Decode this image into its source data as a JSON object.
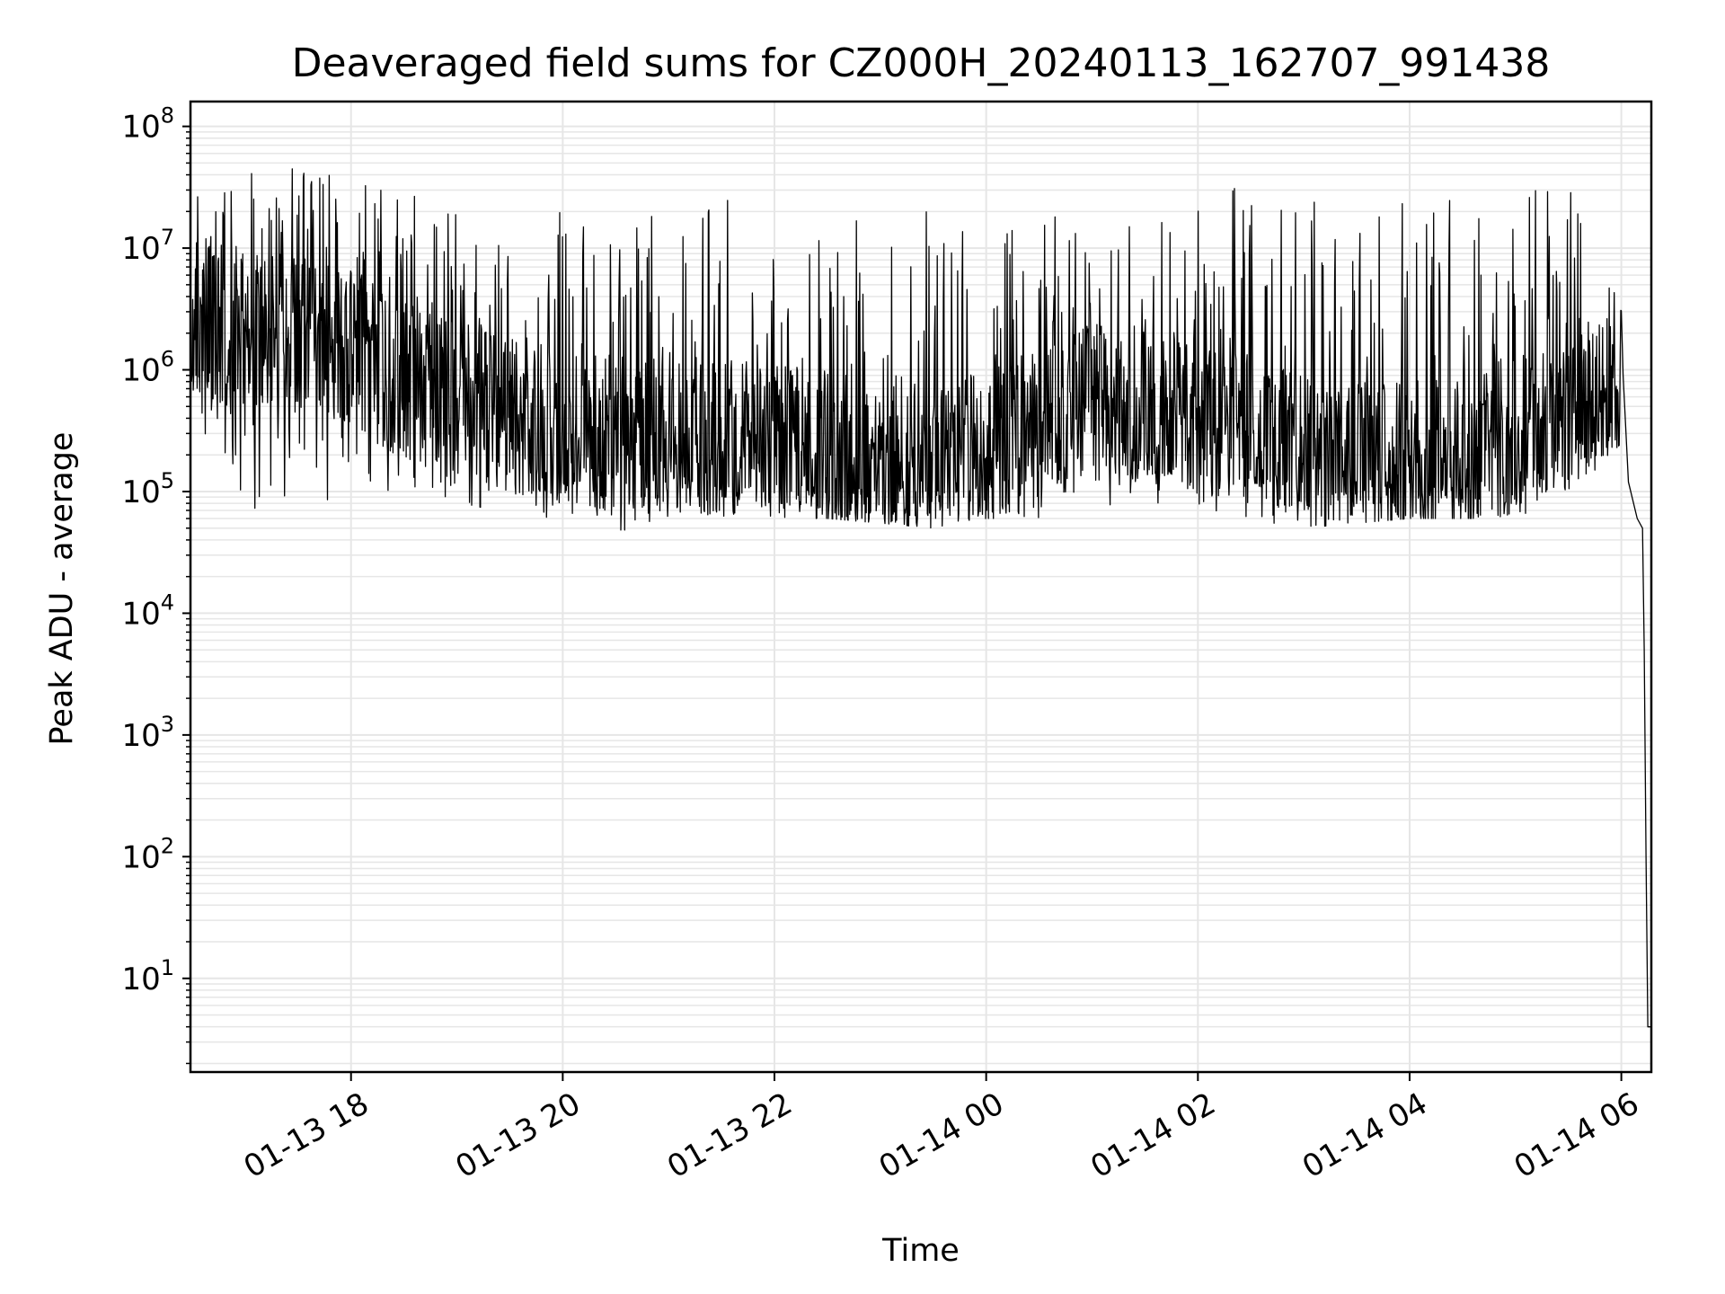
{
  "chart_data": {
    "type": "line",
    "title": "Deaveraged field sums for CZ000H_20240113_162707_991438",
    "xlabel": "Time",
    "ylabel": "Peak ADU - average",
    "yscale": "log",
    "ylim": [
      1.7,
      160000000
    ],
    "xlim": [
      "2024-01-13 16:29",
      "2024-01-14 06:17"
    ],
    "grid": true,
    "line_color": "#000000",
    "grid_color": "#e6e6e6",
    "x_ticks": [
      {
        "t": "2024-01-13 18:00",
        "label": "01-13 18"
      },
      {
        "t": "2024-01-13 20:00",
        "label": "01-13 20"
      },
      {
        "t": "2024-01-13 22:00",
        "label": "01-13 22"
      },
      {
        "t": "2024-01-14 00:00",
        "label": "01-14 00"
      },
      {
        "t": "2024-01-14 02:00",
        "label": "01-14 02"
      },
      {
        "t": "2024-01-14 04:00",
        "label": "01-14 04"
      },
      {
        "t": "2024-01-14 06:00",
        "label": "01-14 06"
      }
    ],
    "y_ticks": [
      {
        "value": 10,
        "base": "10",
        "exp": "1"
      },
      {
        "value": 100,
        "base": "10",
        "exp": "2"
      },
      {
        "value": 1000,
        "base": "10",
        "exp": "3"
      },
      {
        "value": 10000,
        "base": "10",
        "exp": "4"
      },
      {
        "value": 100000,
        "base": "10",
        "exp": "5"
      },
      {
        "value": 1000000,
        "base": "10",
        "exp": "6"
      },
      {
        "value": 10000000,
        "base": "10",
        "exp": "7"
      },
      {
        "value": 100000000,
        "base": "10",
        "exp": "8"
      }
    ],
    "series": [
      {
        "envelope": [
          {
            "t": "2024-01-13 16:29",
            "low": 500000,
            "mid": 3000000,
            "high": 30000000
          },
          {
            "t": "2024-01-13 17:00",
            "low": 70000,
            "mid": 2000000,
            "high": 45000000
          },
          {
            "t": "2024-01-13 17:30",
            "low": 70000,
            "mid": 2000000,
            "high": 50000000
          },
          {
            "t": "2024-01-13 18:00",
            "low": 100000,
            "mid": 1500000,
            "high": 40000000
          },
          {
            "t": "2024-01-13 18:30",
            "low": 100000,
            "mid": 800000,
            "high": 30000000
          },
          {
            "t": "2024-01-13 19:00",
            "low": 80000,
            "mid": 600000,
            "high": 20000000
          },
          {
            "t": "2024-01-13 19:30",
            "low": 60000,
            "mid": 400000,
            "high": 20000000
          },
          {
            "t": "2024-01-13 20:00",
            "low": 60000,
            "mid": 350000,
            "high": 20000000
          },
          {
            "t": "2024-01-13 20:30",
            "low": 45000,
            "mid": 300000,
            "high": 20000000
          },
          {
            "t": "2024-01-13 21:00",
            "low": 55000,
            "mid": 300000,
            "high": 20000000
          },
          {
            "t": "2024-01-13 21:30",
            "low": 60000,
            "mid": 280000,
            "high": 25000000
          },
          {
            "t": "2024-01-13 22:00",
            "low": 60000,
            "mid": 260000,
            "high": 25000000
          },
          {
            "t": "2024-01-13 22:30",
            "low": 60000,
            "mid": 220000,
            "high": 25000000
          },
          {
            "t": "2024-01-13 23:00",
            "low": 55000,
            "mid": 200000,
            "high": 20000000
          },
          {
            "t": "2024-01-13 23:30",
            "low": 50000,
            "mid": 200000,
            "high": 20000000
          },
          {
            "t": "2024-01-14 00:00",
            "low": 60000,
            "mid": 220000,
            "high": 20000000
          },
          {
            "t": "2024-01-14 00:30",
            "low": 60000,
            "mid": 400000,
            "high": 20000000
          },
          {
            "t": "2024-01-14 01:00",
            "low": 70000,
            "mid": 600000,
            "high": 15000000
          },
          {
            "t": "2024-01-14 01:30",
            "low": 80000,
            "mid": 500000,
            "high": 20000000
          },
          {
            "t": "2024-01-14 02:00",
            "low": 70000,
            "mid": 350000,
            "high": 35000000
          },
          {
            "t": "2024-01-14 02:30",
            "low": 55000,
            "mid": 300000,
            "high": 30000000
          },
          {
            "t": "2024-01-14 03:00",
            "low": 50000,
            "mid": 200000,
            "high": 25000000
          },
          {
            "t": "2024-01-14 03:30",
            "low": 55000,
            "mid": 180000,
            "high": 25000000
          },
          {
            "t": "2024-01-14 04:00",
            "low": 60000,
            "mid": 200000,
            "high": 25000000
          },
          {
            "t": "2024-01-14 04:30",
            "low": 60000,
            "mid": 220000,
            "high": 25000000
          },
          {
            "t": "2024-01-14 05:00",
            "low": 60000,
            "mid": 300000,
            "high": 25000000
          },
          {
            "t": "2024-01-14 05:30",
            "low": 90000,
            "mid": 450000,
            "high": 40000000
          },
          {
            "t": "2024-01-14 06:00",
            "low": 250000,
            "mid": 800000,
            "high": 8000000
          }
        ],
        "tail": [
          {
            "t": "2024-01-14 06:01",
            "y": 900000
          },
          {
            "t": "2024-01-14 06:04",
            "y": 120000
          },
          {
            "t": "2024-01-14 06:09",
            "y": 60000
          },
          {
            "t": "2024-01-14 06:12",
            "y": 50000
          },
          {
            "t": "2024-01-14 06:13",
            "y": 5000
          },
          {
            "t": "2024-01-14 06:14",
            "y": 100
          },
          {
            "t": "2024-01-14 06:15",
            "y": 4
          },
          {
            "t": "2024-01-14 06:17",
            "y": 4
          }
        ]
      }
    ]
  }
}
